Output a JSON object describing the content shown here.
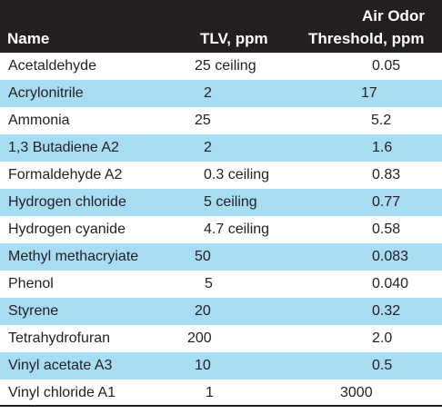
{
  "header": {
    "name": "Name",
    "tlv": "TLV, ppm",
    "odor_line1": "Air Odor",
    "odor_line2": "Threshold, ppm"
  },
  "rows": [
    {
      "name": "Acetaldehyde",
      "tlv": "25 ceiling",
      "odor": "0.05",
      "shaded": false
    },
    {
      "name": "Acrylonitrile",
      "tlv": "2",
      "odor": "17",
      "shaded": true
    },
    {
      "name": "Ammonia",
      "tlv": "25",
      "odor": "5.2",
      "shaded": false
    },
    {
      "name": "1,3 Butadiene A2",
      "tlv": "2",
      "odor": "1.6",
      "shaded": true
    },
    {
      "name": "Formaldehyde A2",
      "tlv": "0.3 ceiling",
      "odor": "0.83",
      "shaded": false
    },
    {
      "name": "Hydrogen chloride",
      "tlv": "5 ceiling",
      "odor": "0.77",
      "shaded": true
    },
    {
      "name": "Hydrogen cyanide",
      "tlv": "4.7 ceiling",
      "odor": "0.58",
      "shaded": false
    },
    {
      "name": "Methyl methacryiate",
      "tlv": "50",
      "odor": "0.083",
      "shaded": true
    },
    {
      "name": "Phenol",
      "tlv": "5",
      "odor": "0.040",
      "shaded": false
    },
    {
      "name": "Styrene",
      "tlv": "20",
      "odor": "0.32",
      "shaded": true
    },
    {
      "name": "Tetrahydrofuran",
      "tlv": "200",
      "odor": "2.0",
      "shaded": false
    },
    {
      "name": "Vinyl acetate A3",
      "tlv": "10",
      "odor": "0.5",
      "shaded": true
    },
    {
      "name": "Vinyl chloride A1",
      "tlv": "1",
      "odor": "3000",
      "shaded": false
    }
  ],
  "colors": {
    "header_bg": "#231f20",
    "row_shade": "#a8dcf2",
    "text": "#231f20"
  }
}
